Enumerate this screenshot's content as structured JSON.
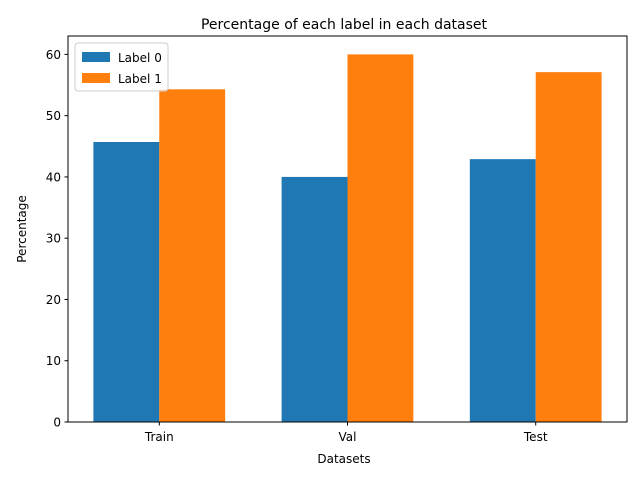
{
  "chart_data": {
    "type": "bar",
    "title": "Percentage of each label in each dataset",
    "xlabel": "Datasets",
    "ylabel": "Percentage",
    "categories": [
      "Train",
      "Val",
      "Test"
    ],
    "series": [
      {
        "name": "Label 0",
        "values": [
          45.7,
          40.0,
          42.9
        ],
        "color": "#1f77b4"
      },
      {
        "name": "Label 1",
        "values": [
          54.3,
          60.0,
          57.1
        ],
        "color": "#ff7f0e"
      }
    ],
    "ylim": [
      0,
      63
    ],
    "yticks": [
      0,
      10,
      20,
      30,
      40,
      50,
      60
    ],
    "grid": false,
    "legend_position": "top-left"
  }
}
